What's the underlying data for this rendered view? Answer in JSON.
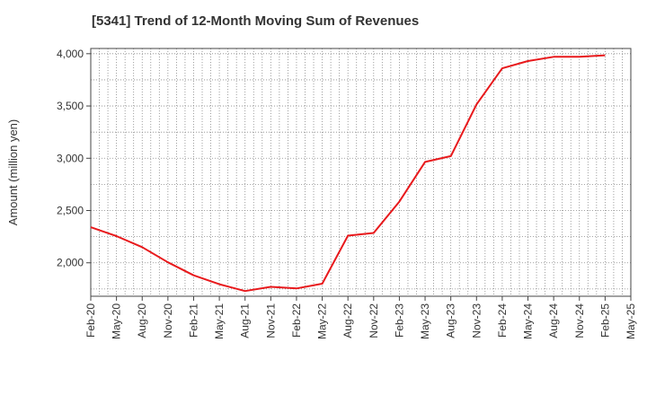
{
  "chart_data": {
    "type": "line",
    "title": "[5341]  Trend of 12-Month Moving Sum of Revenues",
    "xlabel": "",
    "ylabel": "Amount (million yen)",
    "ylim": [
      1680,
      4050
    ],
    "yticks": [
      2000,
      2500,
      3000,
      3500,
      4000
    ],
    "ytick_labels": [
      "2,000",
      "2,500",
      "3,000",
      "3,500",
      "4,000"
    ],
    "x_tick_labels": [
      "Feb-20",
      "May-20",
      "Aug-20",
      "Nov-20",
      "Feb-21",
      "May-21",
      "Aug-21",
      "Nov-21",
      "Feb-22",
      "May-22",
      "Aug-22",
      "Nov-22",
      "Feb-23",
      "May-23",
      "Aug-23",
      "Nov-23",
      "Feb-24",
      "May-24",
      "Aug-24",
      "Nov-24",
      "Feb-25",
      "May-25"
    ],
    "grid": true,
    "series": [
      {
        "color": "#e8191c",
        "x": [
          "Feb-20",
          "May-20",
          "Aug-20",
          "Nov-20",
          "Feb-21",
          "May-21",
          "Aug-21",
          "Nov-21",
          "Feb-22",
          "May-22",
          "Aug-22",
          "Nov-22",
          "Feb-23",
          "May-23",
          "Aug-23",
          "Nov-23",
          "Feb-24",
          "May-24",
          "Aug-24",
          "Nov-24",
          "Feb-25"
        ],
        "values": [
          2340,
          2255,
          2150,
          2005,
          1880,
          1795,
          1730,
          1770,
          1755,
          1800,
          2260,
          2285,
          2585,
          2965,
          3020,
          3515,
          3860,
          3930,
          3970,
          3970,
          3985
        ]
      }
    ]
  }
}
